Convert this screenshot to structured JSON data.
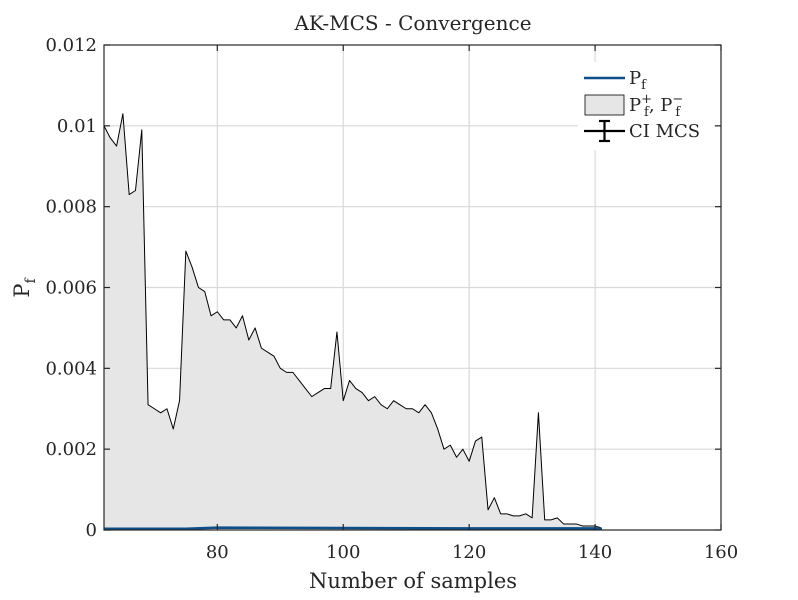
{
  "chart_data": {
    "type": "area",
    "title": "AK-MCS - Convergence",
    "xlabel": "Number of samples",
    "ylabel_main": "P",
    "ylabel_sub": "f",
    "xlim": [
      62,
      160
    ],
    "ylim": [
      0,
      0.012
    ],
    "xticks": [
      80,
      100,
      120,
      140,
      160
    ],
    "yticks": [
      0,
      0.002,
      0.004,
      0.006,
      0.008,
      0.01,
      0.012
    ],
    "ytick_labels": [
      "0",
      "0.002",
      "0.004",
      "0.006",
      "0.008",
      "0.01",
      "0.012"
    ],
    "grid": true,
    "legend_position": "top-right",
    "colors": {
      "pf_line": "#0c4f8a",
      "band_fill": "#e6e6e6",
      "band_edge": "#000000",
      "ci": "#000000",
      "grid": "#d9d9d9",
      "axis": "#262626"
    },
    "legend": [
      {
        "kind": "line",
        "main": "P",
        "sub": "f",
        "sup": ""
      },
      {
        "kind": "patch",
        "main": "P",
        "sub": "f",
        "sup": "+",
        "main2": "P",
        "sub2": "f",
        "sup2": "−"
      },
      {
        "kind": "errorbar",
        "label": "CI MCS"
      }
    ],
    "series": [
      {
        "name": "Pf",
        "x": [
          62,
          75,
          80,
          100,
          120,
          130,
          140,
          141
        ],
        "y": [
          3e-05,
          3e-05,
          6e-05,
          5e-05,
          4e-05,
          4e-05,
          4e-05,
          3e-05
        ]
      },
      {
        "name": "Pf+",
        "x": [
          62,
          63,
          64,
          65,
          66,
          67,
          68,
          69,
          70,
          71,
          72,
          73,
          74,
          75,
          76,
          77,
          78,
          79,
          80,
          81,
          82,
          83,
          84,
          85,
          86,
          87,
          88,
          89,
          90,
          91,
          92,
          93,
          94,
          95,
          96,
          97,
          98,
          99,
          100,
          101,
          102,
          103,
          104,
          105,
          106,
          107,
          108,
          109,
          110,
          111,
          112,
          113,
          114,
          115,
          116,
          117,
          118,
          119,
          120,
          121,
          122,
          123,
          124,
          125,
          126,
          127,
          128,
          129,
          130,
          131,
          132,
          133,
          134,
          135,
          136,
          137,
          138,
          139,
          140,
          141
        ],
        "y": [
          0.01,
          0.0097,
          0.0095,
          0.0103,
          0.0083,
          0.0084,
          0.0099,
          0.0031,
          0.003,
          0.0029,
          0.003,
          0.0025,
          0.0032,
          0.0069,
          0.0065,
          0.006,
          0.0059,
          0.0053,
          0.0054,
          0.0052,
          0.0052,
          0.005,
          0.0053,
          0.0047,
          0.005,
          0.0045,
          0.0044,
          0.0043,
          0.004,
          0.0039,
          0.0039,
          0.0037,
          0.0035,
          0.0033,
          0.0034,
          0.0035,
          0.0035,
          0.0049,
          0.0032,
          0.0037,
          0.0035,
          0.0034,
          0.0032,
          0.0033,
          0.0031,
          0.003,
          0.0032,
          0.0031,
          0.003,
          0.003,
          0.0029,
          0.0031,
          0.0029,
          0.0025,
          0.002,
          0.0021,
          0.0018,
          0.002,
          0.0017,
          0.0022,
          0.0023,
          0.0005,
          0.0008,
          0.0004,
          0.0004,
          0.00035,
          0.00035,
          0.0004,
          0.0003,
          0.0029,
          0.00025,
          0.00025,
          0.0003,
          0.00015,
          0.00015,
          0.00015,
          0.0001,
          0.0001,
          0.0001,
          5e-05
        ]
      },
      {
        "name": "Pf-",
        "x": [
          62,
          80,
          100,
          120,
          141
        ],
        "y": [
          0,
          0,
          0,
          0,
          0
        ]
      }
    ]
  }
}
